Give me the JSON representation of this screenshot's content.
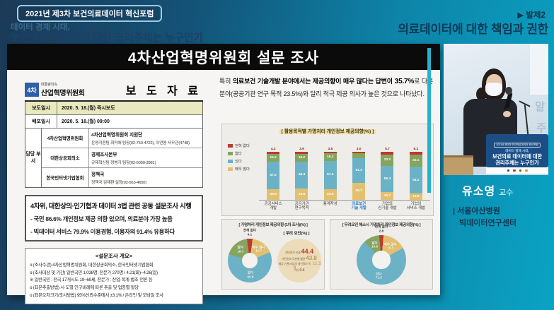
{
  "header": {
    "badge": "2021년 제3차 보건의료데이터 혁신포럼",
    "tagline_line1": "데이터 경제 시대,",
    "tagline_line2": "보건의료 데이터에 대한 권리주체는 누구인가",
    "session_marker": "▶ 발제2",
    "session_title": "의료데이터에 대한 책임과 권한"
  },
  "slide": {
    "title": "4차산업혁명위원회 설문 조사",
    "press_release": {
      "logo_mark": "4차",
      "org_small": "대통령직속",
      "org_name": "산업혁명위원회",
      "doc_type": "보 도 자 료",
      "info_rows": [
        {
          "label": "보도일시",
          "value": "2020. 5. 18.(월) 즉시보도"
        },
        {
          "label": "배포일시",
          "value": "2020. 5. 18.(월) 09:00"
        }
      ],
      "dept_label": "담당 부서",
      "contacts": [
        {
          "org": "4차산업혁명위원회",
          "team": "4차산업혁명위원회 지원단",
          "detail": "운영지원팀 최미애 팀장(02-750-4722), 이언용 사무관(4748)"
        },
        {
          "org": "대한상공회의소",
          "team": "경제조사본부",
          "detail": "규제혁신팀 정병기 팀장(02-6050-3981)"
        },
        {
          "org": "한국인터넷기업협회",
          "team": "정책국",
          "detail": "정책국 김재환 실장(02-563-4650)"
        }
      ],
      "headline": "4차위, 대한상의·인기협과 데이터 3법 관련 공동 설문조사 시행",
      "headline_bullets": [
        "- 국민 86.6% 개인정보 제공 의향 있으며, 의료분야 가장 높음",
        "- 빅데이터 서비스 79.9% 이용경험, 이용자의 91.4% 유용하다"
      ],
      "overview_title": "<설문조사 개요>",
      "overview_items": [
        "o (조사주관) 4차산업혁명위원회, 대한상공회의소, 한국인터넷기업협회",
        "o (조사대상 및 기간) 일반국민 1,038명, 전문가 270명 / 4.21(화)~4.26(일)",
        "※ 일반국민 : 전국 17개시도 19~69세, 전문가 : 산업·학계·법조·언론 등",
        "o (표본추출방법) 시·도별 인구비례에 따른 추출 및 업종별 할당",
        "o (표본오차크기/조사방법) 95%신뢰수준에서 ±3.1% / 온라인 및 모바일 조사"
      ]
    },
    "paragraph_runs": {
      "r1": "특히 ",
      "r2": "의료보건 기술개발 분야에서는 제공의향이 매우 많다는 답변이",
      "r3": " 35.7%",
      "r4": "로 다른 분야(공공기관 연구 목적 23.5%)와 달리 적극 제공 의사가 높은 것으로 나타났다."
    }
  },
  "chart_data": [
    {
      "type": "bar",
      "stacked": true,
      "title": "[ 활용목적별 가명처리 개인정보 제공의향(%) ]",
      "categories": [
        "공공서비스\n개발",
        "공공기관\n연구목적",
        "통계작성",
        "의료보건\n기술 개발",
        "기업의\n신기술 개발",
        "기업의\n서비스 개발"
      ],
      "highlight_category_index": 3,
      "series": [
        {
          "name": "전혀 없다",
          "color": "#bd3a2e",
          "values": [
            4.2,
            3.9,
            3.5,
            3.0,
            5.7,
            6.2
          ]
        },
        {
          "name": "없다",
          "color": "#85a55e",
          "values": [
            16.2,
            16.2,
            16.2,
            9.9,
            23.2,
            25.1
          ]
        },
        {
          "name": "있다",
          "color": "#6cb2c6",
          "values": [
            57.0,
            56.4,
            57.4,
            51.3,
            55.4,
            55.2
          ]
        },
        {
          "name": "매우 많다",
          "color": "#e3c06f",
          "values": [
            22.6,
            23.5,
            22.8,
            35.7,
            15.7,
            13.5
          ]
        }
      ],
      "legend_order": [
        "전혀 없다",
        "없다",
        "있다",
        "매우 많다"
      ],
      "ylim": [
        0,
        100
      ],
      "legend_position": "left"
    },
    {
      "type": "pie",
      "title": "[ 가명처리 개인정보 제공의향 (1차 조사)(%) ]",
      "segments": [
        {
          "label": "전혀 없다",
          "value": 4.1,
          "color": "#bd3a2e"
        },
        {
          "label": "매우 많다",
          "value": 16.7,
          "color": "#e3c06f"
        },
        {
          "label": "있다",
          "value": 60.9,
          "color": "#6cb2c6"
        },
        {
          "label": "없다",
          "value": 18.3,
          "color": "#85a55e"
        }
      ]
    },
    {
      "type": "pie",
      "title": "[ 우려요인 해소시 가명처리 개인정보 제공의향(%) ]",
      "segments": [
        {
          "label": "전혀 없다",
          "value": 2.8,
          "color": "#bd3a2e"
        },
        {
          "label": "매우 많다",
          "value": 15.6,
          "color": "#e3c06f"
        },
        {
          "label": "있다",
          "value": 71.0,
          "color": "#6cb2c6"
        },
        {
          "label": "없다",
          "value": 10.6,
          "color": "#85a55e"
        }
      ]
    },
    {
      "type": "table",
      "title": "[ 우려 요인(%) ]",
      "rows": [
        [
          "개인정보 유출",
          "44.4"
        ],
        [
          "개인정보 무분별 활용",
          "43.8"
        ],
        [
          "제공 기관/기업의 개인정보 독점",
          "11.5"
        ],
        [
          "기타",
          "0.4"
        ]
      ]
    }
  ],
  "video": {
    "sign_badge": "2021년 제3차 보건의료데이터 혁신포럼",
    "sign_line1": "데이터 경제 시대,",
    "sign_line2": "보건의료 데이터에 대한",
    "sign_line3": "권리주체는 누구인가"
  },
  "speaker": {
    "name": "유소영",
    "title": "교수",
    "affiliation_line1": "| 서울아산병원",
    "affiliation_line2": "빅데이터연구센터"
  }
}
